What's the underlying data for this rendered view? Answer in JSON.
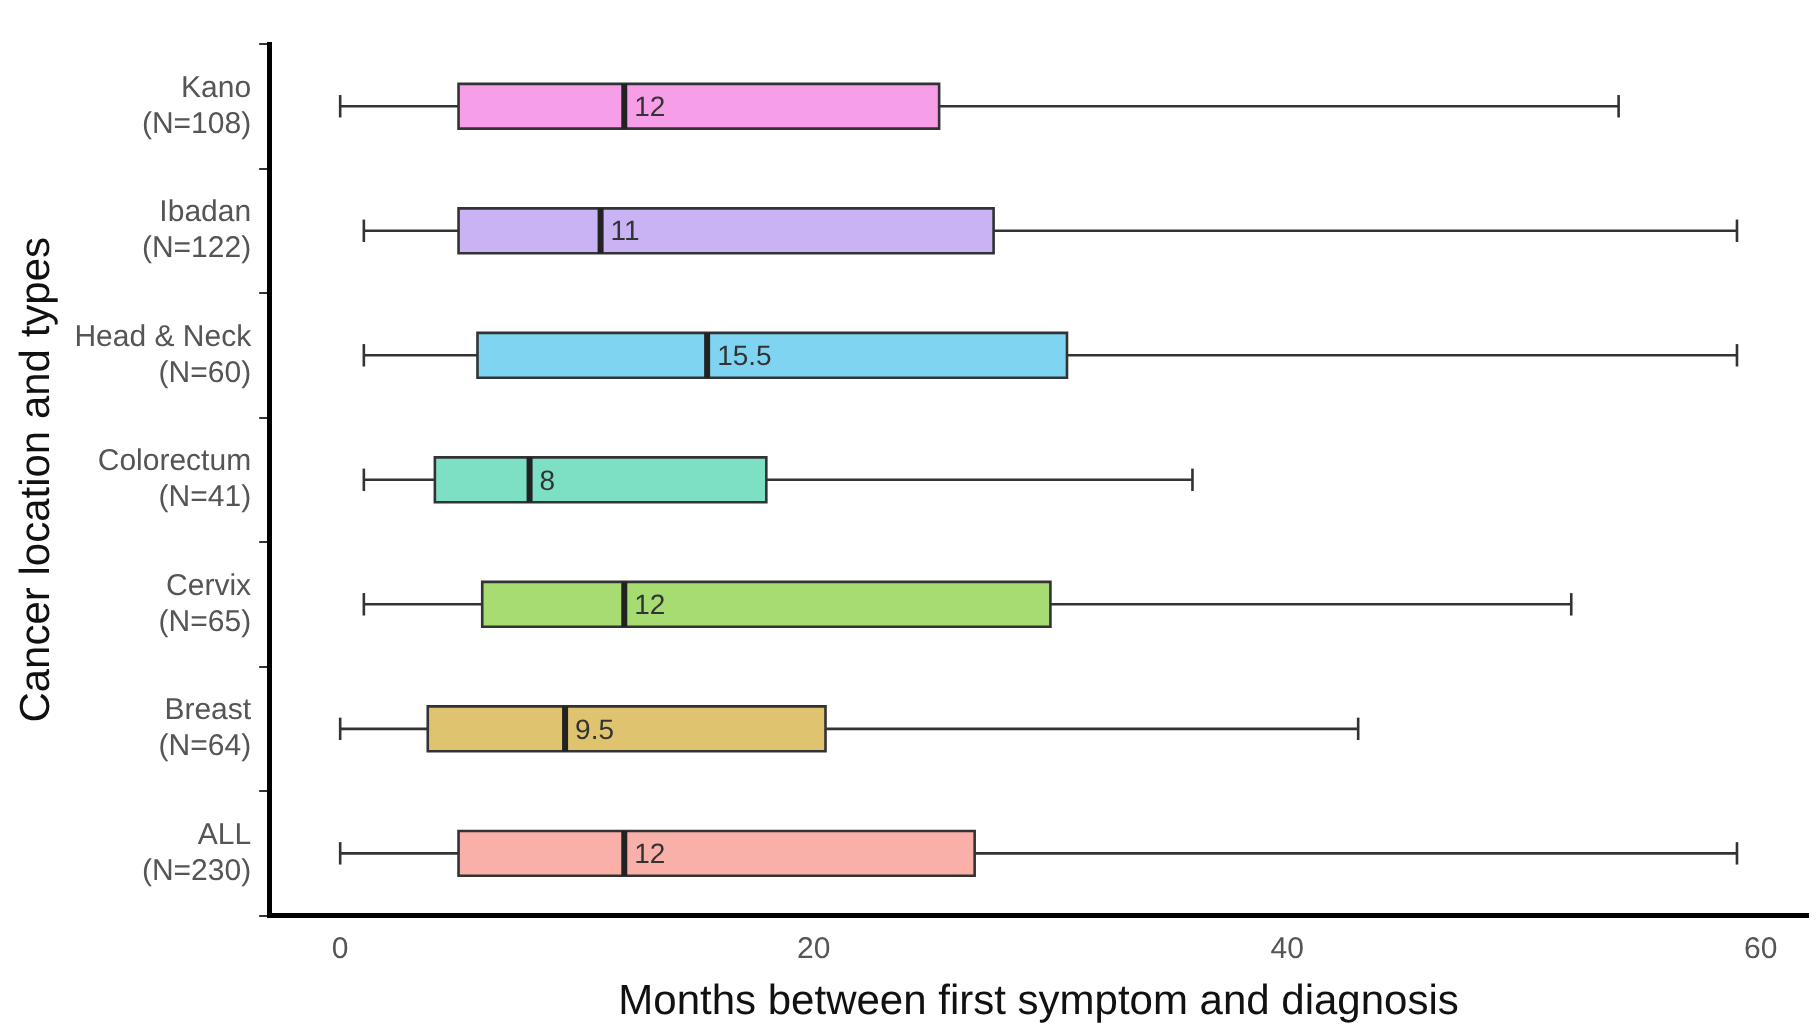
{
  "chart_data": {
    "type": "box",
    "orientation": "horizontal",
    "xlabel": "Months between first symptom and diagnosis",
    "ylabel": "Cancer location and types",
    "categories": [
      "Kano\n(N=108)",
      "Ibadan\n(N=122)",
      "Head & Neck\n(N=60)",
      "Colorectum\n(N=41)",
      "Cervix\n(N=65)",
      "Breast\n(N=64)",
      "ALL\n(N=230)"
    ],
    "colors": [
      "#f79ee8",
      "#c9b3f5",
      "#7fd4f2",
      "#7ddfc3",
      "#a6dc72",
      "#e0c36e",
      "#f9b0a8"
    ],
    "boxes": [
      {
        "low": 0,
        "q1": 5,
        "median": 12,
        "q3": 25.3,
        "high": 54
      },
      {
        "low": 1,
        "q1": 5,
        "median": 11,
        "q3": 27.6,
        "high": 59
      },
      {
        "low": 1,
        "q1": 5.8,
        "median": 15.5,
        "q3": 30.7,
        "high": 59
      },
      {
        "low": 1,
        "q1": 4,
        "median": 8,
        "q3": 18,
        "high": 36
      },
      {
        "low": 1,
        "q1": 6,
        "median": 12,
        "q3": 30,
        "high": 52
      },
      {
        "low": 0,
        "q1": 3.7,
        "median": 9.5,
        "q3": 20.5,
        "high": 43
      },
      {
        "low": 0,
        "q1": 5,
        "median": 12,
        "q3": 26.8,
        "high": 59
      }
    ],
    "value_labels": [
      "12",
      "11",
      "15.5",
      "8",
      "12",
      "9.5",
      "12"
    ],
    "xlim": [
      -3,
      62
    ],
    "xticks": [
      0,
      20,
      40,
      60
    ],
    "grid": false,
    "legend": false
  }
}
